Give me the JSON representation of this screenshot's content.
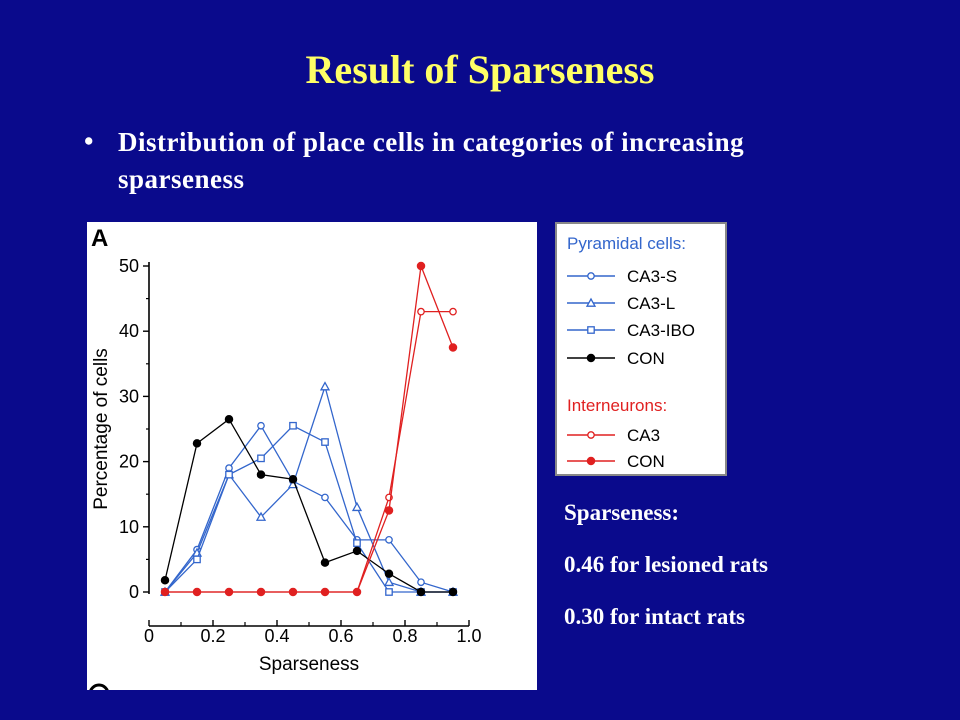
{
  "slide": {
    "title": "Result of Sparseness",
    "bullet": "•",
    "bullet_text": "Distribution of place cells in categories of increasing sparseness",
    "panel_label": "A",
    "sparseness_heading": "Sparseness:",
    "sparseness_lines": [
      "0.46 for lesioned rats",
      "0.30 for intact rats"
    ]
  },
  "legend": {
    "pyramidal_heading": "Pyramidal cells:",
    "interneurons_heading": "Interneurons:",
    "pyramidal_items": [
      {
        "label": "CA3-S",
        "marker": "circle-open",
        "color": "#3366cc"
      },
      {
        "label": "CA3-L",
        "marker": "triangle-open",
        "color": "#3366cc"
      },
      {
        "label": "CA3-IBO",
        "marker": "square-open",
        "color": "#3366cc"
      },
      {
        "label": "CON",
        "marker": "circle-filled",
        "color": "#000000"
      }
    ],
    "interneuron_items": [
      {
        "label": "CA3",
        "marker": "circle-open",
        "color": "#e02020"
      },
      {
        "label": "CON",
        "marker": "circle-filled",
        "color": "#e02020"
      }
    ]
  },
  "chart_data": {
    "type": "line",
    "xlabel": "Sparseness",
    "ylabel": "Percentage of cells",
    "xlim": [
      0,
      1.0
    ],
    "ylim": [
      0,
      50
    ],
    "xticks": [
      "0",
      "0.2",
      "0.4",
      "0.6",
      "0.8",
      "1.0"
    ],
    "yticks": [
      "0",
      "10",
      "20",
      "30",
      "40",
      "50"
    ],
    "grid": false,
    "x": [
      0.05,
      0.15,
      0.25,
      0.35,
      0.45,
      0.55,
      0.65,
      0.75,
      0.85,
      0.95
    ],
    "series": [
      {
        "name": "CA3-S",
        "color": "#3366cc",
        "marker": "circle-open",
        "values": [
          0,
          6.5,
          19,
          25.5,
          17,
          14.5,
          8,
          8,
          1.5,
          0
        ]
      },
      {
        "name": "CA3-L",
        "color": "#3366cc",
        "marker": "triangle-open",
        "values": [
          0,
          6,
          18,
          11.5,
          16.5,
          31.5,
          13,
          1.5,
          0,
          0
        ]
      },
      {
        "name": "CA3-IBO",
        "color": "#3366cc",
        "marker": "square-open",
        "values": [
          0,
          5,
          18,
          20.5,
          25.5,
          23,
          7.5,
          0,
          0,
          0
        ]
      },
      {
        "name": "CON",
        "color": "#000000",
        "marker": "circle-filled",
        "values": [
          1.8,
          22.8,
          26.5,
          18,
          17.3,
          4.5,
          6.3,
          2.8,
          0,
          0
        ]
      },
      {
        "name": "CA3",
        "color": "#e02020",
        "marker": "circle-open",
        "values": [
          0,
          0,
          0,
          0,
          0,
          0,
          0,
          14.5,
          43,
          43
        ]
      },
      {
        "name": "CON",
        "color": "#e02020",
        "marker": "circle-filled",
        "values": [
          0,
          0,
          0,
          0,
          0,
          0,
          0,
          12.5,
          50,
          37.5
        ]
      }
    ]
  }
}
